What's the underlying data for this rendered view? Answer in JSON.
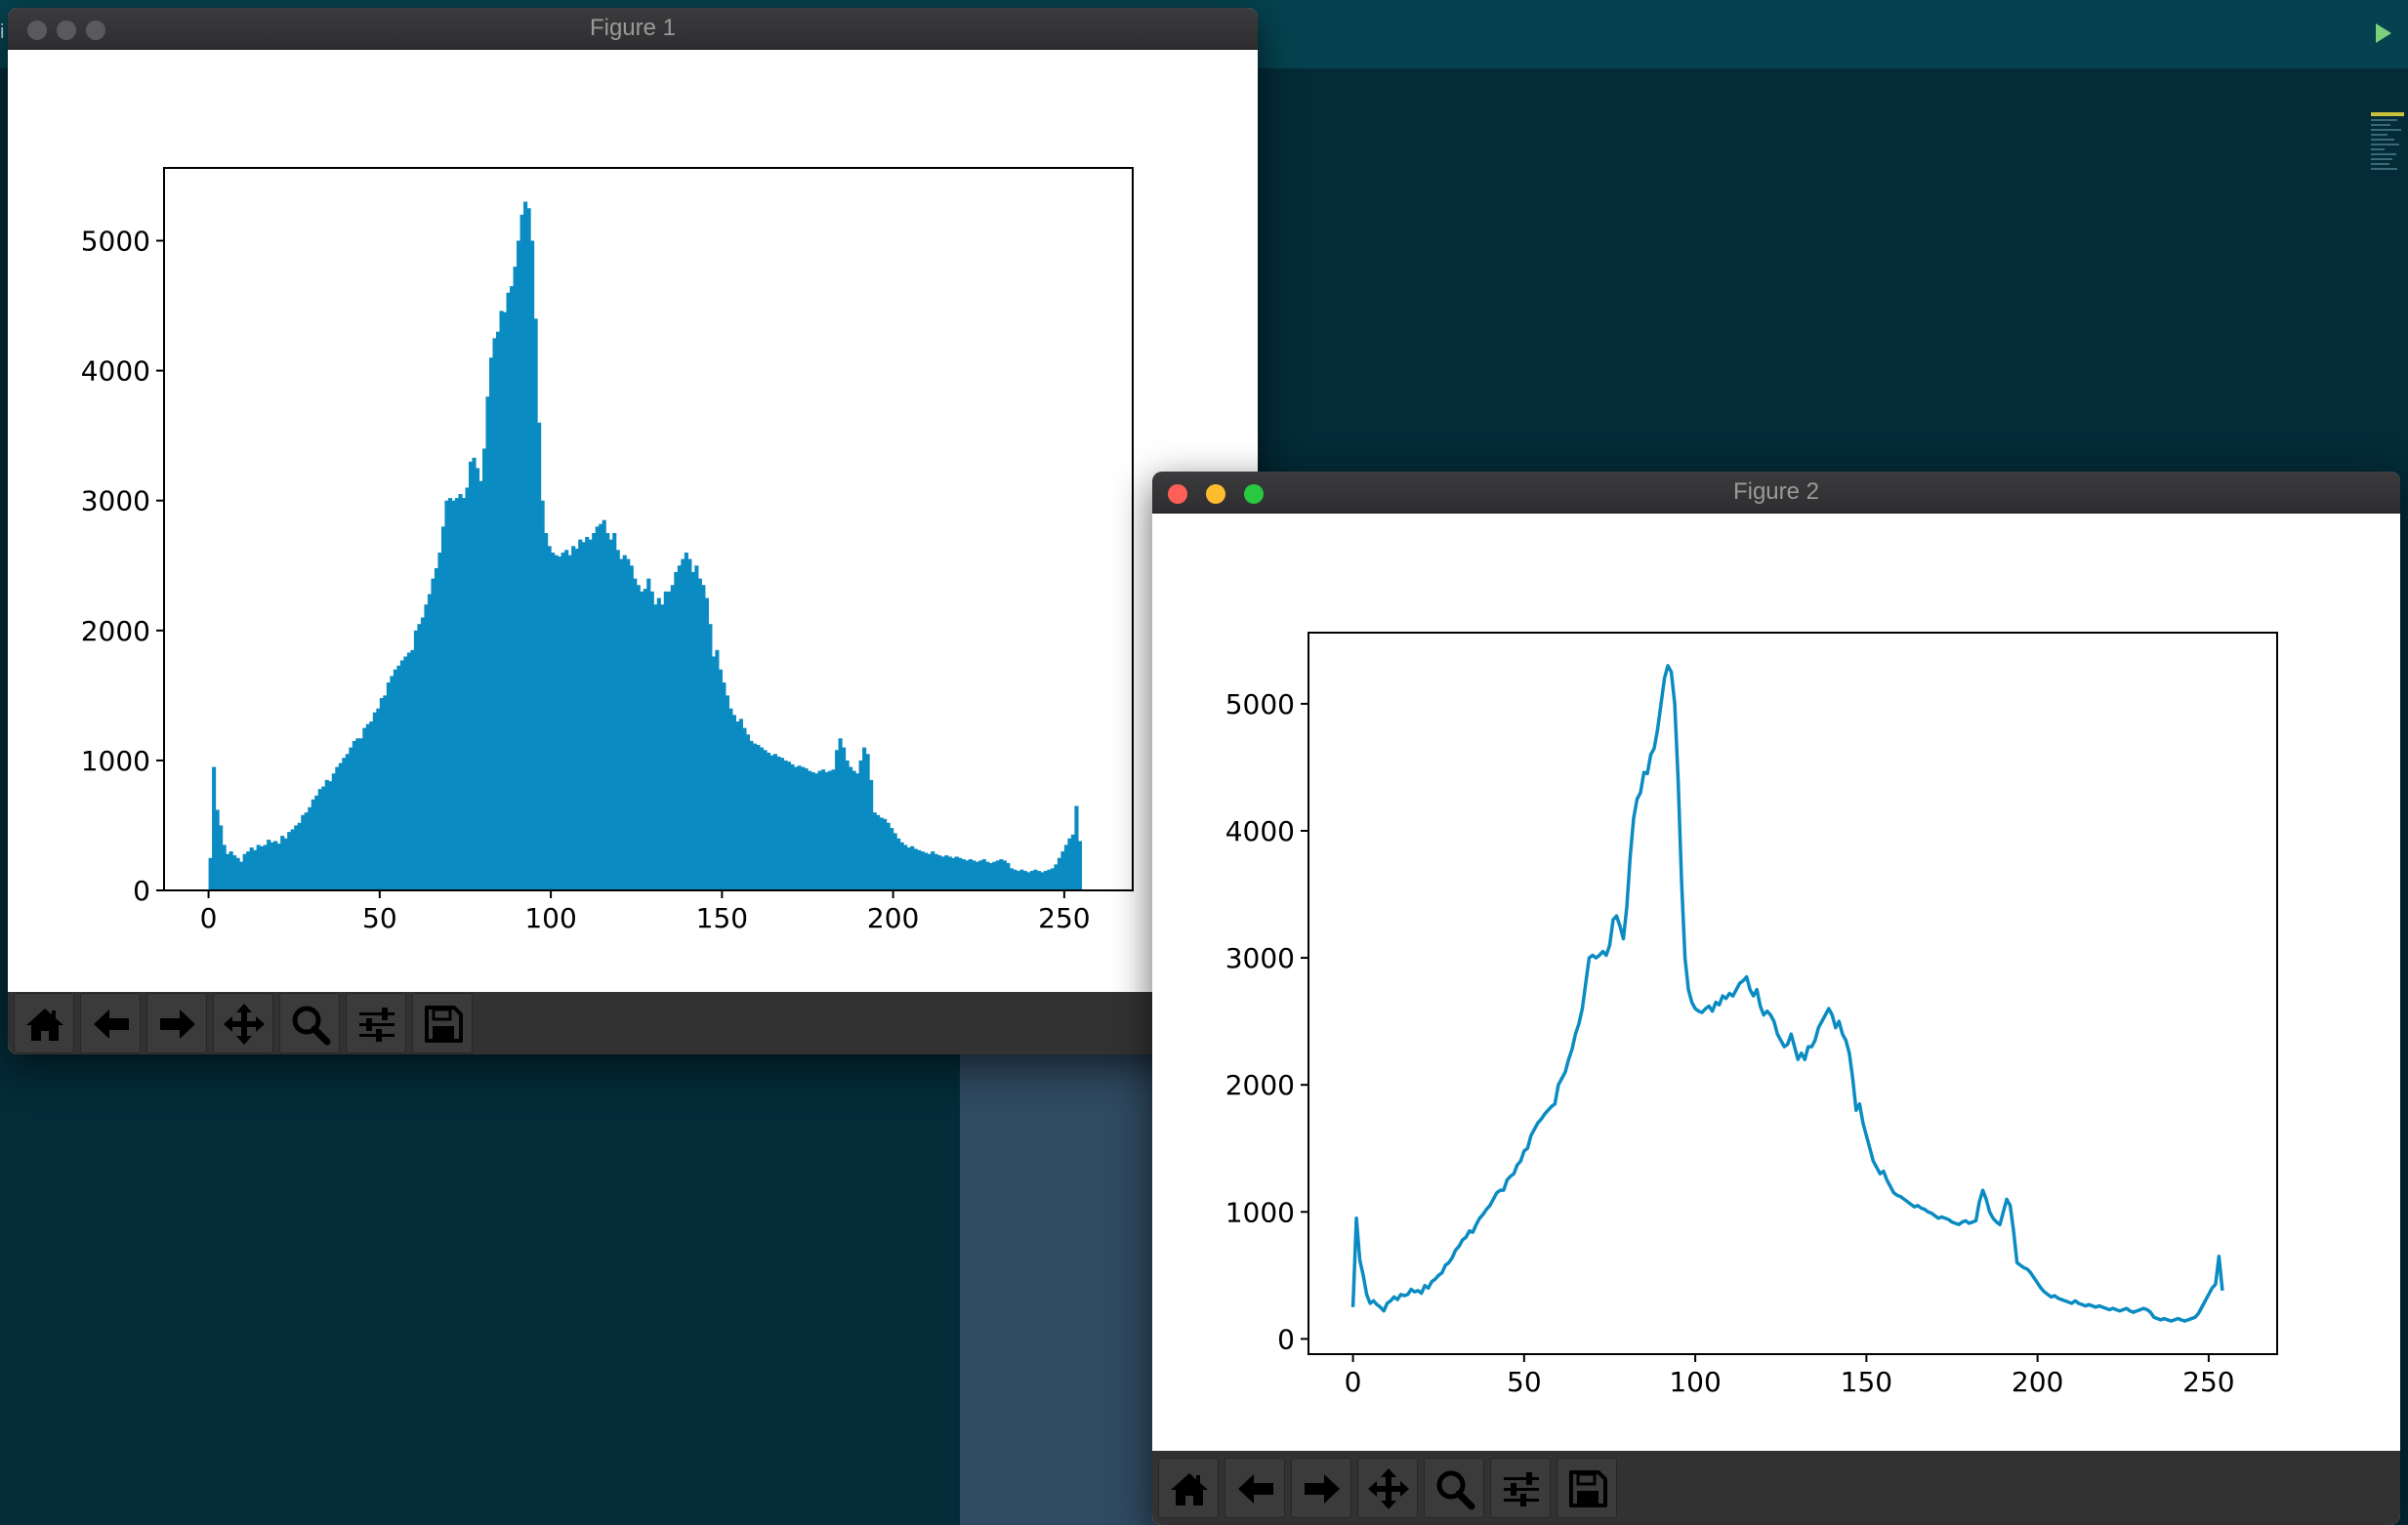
{
  "colors": {
    "editor_bg": "#032b38",
    "editor_top_bar": "#05424f",
    "panel": "#2f4a61",
    "series": "#0a8bc2",
    "traffic_close": "#ff5f57",
    "traffic_minimize": "#febc2e",
    "traffic_zoom": "#28c840",
    "traffic_inactive": "#5a5a5c"
  },
  "editor": {
    "edge_char": "i",
    "run_icon": "play-icon"
  },
  "toolbar": {
    "buttons": [
      {
        "id": "home",
        "icon": "home-icon"
      },
      {
        "id": "back",
        "icon": "arrow-left-icon"
      },
      {
        "id": "forward",
        "icon": "arrow-right-icon"
      },
      {
        "id": "pan",
        "icon": "move-icon"
      },
      {
        "id": "zoom",
        "icon": "magnifier-icon"
      },
      {
        "id": "configure",
        "icon": "sliders-icon"
      },
      {
        "id": "save",
        "icon": "floppy-disk-icon"
      }
    ]
  },
  "windows": {
    "figure1": {
      "title": "Figure 1",
      "active": false
    },
    "figure2": {
      "title": "Figure 2",
      "active": true
    }
  },
  "chart_data": [
    {
      "type": "bar",
      "figure": "Figure 1",
      "title": "",
      "xlabel": "",
      "ylabel": "",
      "xlim": [
        -13,
        270
      ],
      "ylim": [
        0,
        5560
      ],
      "xticks": [
        0,
        50,
        100,
        150,
        200,
        250
      ],
      "yticks": [
        0,
        1000,
        2000,
        3000,
        4000,
        5000
      ],
      "grid": false,
      "x_start": 0,
      "values": [
        250,
        950,
        620,
        500,
        350,
        280,
        300,
        270,
        250,
        220,
        280,
        300,
        330,
        310,
        350,
        340,
        350,
        390,
        370,
        380,
        360,
        420,
        400,
        450,
        470,
        500,
        520,
        580,
        600,
        640,
        700,
        730,
        780,
        800,
        850,
        840,
        900,
        950,
        980,
        1020,
        1050,
        1100,
        1150,
        1170,
        1170,
        1250,
        1280,
        1300,
        1370,
        1400,
        1480,
        1500,
        1600,
        1650,
        1700,
        1730,
        1770,
        1800,
        1830,
        1850,
        2000,
        2050,
        2100,
        2200,
        2280,
        2400,
        2480,
        2600,
        2800,
        3000,
        3020,
        3000,
        3020,
        3050,
        3020,
        3100,
        3300,
        3330,
        3250,
        3150,
        3400,
        3800,
        4100,
        4250,
        4300,
        4460,
        4450,
        4600,
        4650,
        4800,
        5000,
        5200,
        5300,
        5250,
        5000,
        4400,
        3600,
        3000,
        2750,
        2650,
        2600,
        2580,
        2570,
        2600,
        2620,
        2580,
        2650,
        2630,
        2700,
        2680,
        2720,
        2700,
        2750,
        2800,
        2820,
        2850,
        2750,
        2700,
        2750,
        2620,
        2550,
        2580,
        2550,
        2500,
        2400,
        2350,
        2300,
        2320,
        2400,
        2300,
        2200,
        2250,
        2200,
        2300,
        2300,
        2350,
        2450,
        2500,
        2550,
        2600,
        2550,
        2450,
        2500,
        2400,
        2350,
        2250,
        2050,
        1800,
        1850,
        1700,
        1600,
        1500,
        1400,
        1350,
        1300,
        1320,
        1250,
        1200,
        1150,
        1130,
        1120,
        1100,
        1080,
        1060,
        1040,
        1050,
        1030,
        1020,
        1000,
        990,
        970,
        950,
        960,
        950,
        940,
        920,
        910,
        900,
        920,
        930,
        910,
        920,
        930,
        1080,
        1170,
        1100,
        1000,
        950,
        920,
        900,
        1000,
        1100,
        1050,
        850,
        600,
        580,
        560,
        550,
        520,
        480,
        440,
        400,
        370,
        350,
        330,
        340,
        320,
        310,
        300,
        290,
        280,
        300,
        280,
        270,
        260,
        270,
        260,
        250,
        260,
        250,
        240,
        230,
        240,
        230,
        220,
        230,
        240,
        220,
        210,
        220,
        230,
        240,
        230,
        210,
        170,
        160,
        150,
        160,
        150,
        140,
        150,
        160,
        150,
        140,
        150,
        160,
        170,
        200,
        250,
        300,
        350,
        400,
        430,
        650,
        380
      ]
    },
    {
      "type": "line",
      "figure": "Figure 2",
      "title": "",
      "xlabel": "",
      "ylabel": "",
      "xlim": [
        -13,
        270
      ],
      "ylim": [
        -120,
        5560
      ],
      "xticks": [
        0,
        50,
        100,
        150,
        200,
        250
      ],
      "yticks": [
        0,
        1000,
        2000,
        3000,
        4000,
        5000
      ],
      "grid": false,
      "x_start": 0,
      "values": [
        250,
        950,
        620,
        500,
        350,
        280,
        300,
        270,
        250,
        220,
        280,
        300,
        330,
        310,
        350,
        340,
        350,
        390,
        370,
        380,
        360,
        420,
        400,
        450,
        470,
        500,
        520,
        580,
        600,
        640,
        700,
        730,
        780,
        800,
        850,
        840,
        900,
        950,
        980,
        1020,
        1050,
        1100,
        1150,
        1170,
        1170,
        1250,
        1280,
        1300,
        1370,
        1400,
        1480,
        1500,
        1600,
        1650,
        1700,
        1730,
        1770,
        1800,
        1830,
        1850,
        2000,
        2050,
        2100,
        2200,
        2280,
        2400,
        2480,
        2600,
        2800,
        3000,
        3020,
        3000,
        3020,
        3050,
        3020,
        3100,
        3300,
        3330,
        3250,
        3150,
        3400,
        3800,
        4100,
        4250,
        4300,
        4460,
        4450,
        4600,
        4650,
        4800,
        5000,
        5200,
        5300,
        5250,
        5000,
        4400,
        3600,
        3000,
        2750,
        2650,
        2600,
        2580,
        2570,
        2600,
        2620,
        2580,
        2650,
        2630,
        2700,
        2680,
        2720,
        2700,
        2750,
        2800,
        2820,
        2850,
        2750,
        2700,
        2750,
        2620,
        2550,
        2580,
        2550,
        2500,
        2400,
        2350,
        2300,
        2320,
        2400,
        2300,
        2200,
        2250,
        2200,
        2300,
        2300,
        2350,
        2450,
        2500,
        2550,
        2600,
        2550,
        2450,
        2500,
        2400,
        2350,
        2250,
        2050,
        1800,
        1850,
        1700,
        1600,
        1500,
        1400,
        1350,
        1300,
        1320,
        1250,
        1200,
        1150,
        1130,
        1120,
        1100,
        1080,
        1060,
        1040,
        1050,
        1030,
        1020,
        1000,
        990,
        970,
        950,
        960,
        950,
        940,
        920,
        910,
        900,
        920,
        930,
        910,
        920,
        930,
        1080,
        1170,
        1100,
        1000,
        950,
        920,
        900,
        1000,
        1100,
        1050,
        850,
        600,
        580,
        560,
        550,
        520,
        480,
        440,
        400,
        370,
        350,
        330,
        340,
        320,
        310,
        300,
        290,
        280,
        300,
        280,
        270,
        260,
        270,
        260,
        250,
        260,
        250,
        240,
        230,
        240,
        230,
        220,
        230,
        240,
        220,
        210,
        220,
        230,
        240,
        230,
        210,
        170,
        160,
        150,
        160,
        150,
        140,
        150,
        160,
        150,
        140,
        150,
        160,
        170,
        200,
        250,
        300,
        350,
        400,
        430,
        650,
        380
      ]
    }
  ]
}
